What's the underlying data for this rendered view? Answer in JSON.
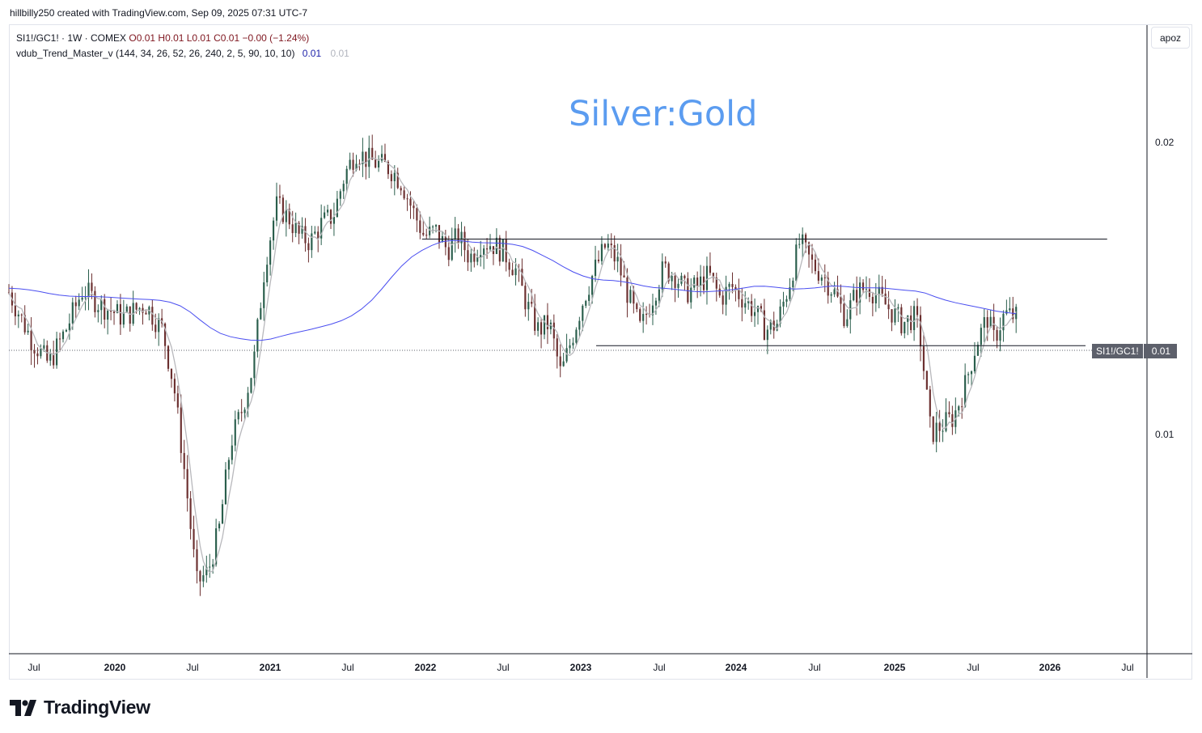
{
  "header": {
    "text": "hillbilly250 created with TradingView.com, Sep 09, 2025 07:31 UTC-7"
  },
  "legend": {
    "symbol": "SI1!/GC1! · 1W · COMEX",
    "ohlc": "O0.01  H0.01  L0.01  C0.01  −0.00 (−1.24%)",
    "indicator": "vdub_Trend_Master_v (144, 34, 26, 52, 26, 240, 2, 5, 90, 10, 10)",
    "indicator_value1": "0.01",
    "indicator_value2": "0.01"
  },
  "toolbar": {
    "apoz": "apoz"
  },
  "annotation": {
    "text": "Silver:Gold",
    "color": "#5b9cf0"
  },
  "price_label": {
    "symbol": "SI1!/GC1!",
    "value": "0.01"
  },
  "brand": {
    "name": "TradingView"
  },
  "colors": {
    "up": "#2a5e4c",
    "down": "#6b2f2f",
    "ma_long": "#4a4ef0",
    "ma_short": "#b8b8bc",
    "line": "#131722"
  },
  "chart_data": {
    "type": "candlestick",
    "symbol": "SI1!/GC1!",
    "timeframe": "1W",
    "exchange": "COMEX",
    "y_ticks": [
      "0.02",
      "0.01"
    ],
    "x_ticks": [
      "Jul",
      "2020",
      "Jul",
      "2021",
      "Jul",
      "2022",
      "Jul",
      "2023",
      "Jul",
      "2024",
      "Jul",
      "2025",
      "Jul",
      "2026",
      "Jul"
    ],
    "last_value": 0.01,
    "scale": "log",
    "close_path": [
      [
        0.0,
        0.014
      ],
      [
        0.02,
        0.0125
      ],
      [
        0.035,
        0.0118
      ],
      [
        0.05,
        0.0128
      ],
      [
        0.065,
        0.0141
      ],
      [
        0.08,
        0.0136
      ],
      [
        0.1,
        0.0132
      ],
      [
        0.12,
        0.0136
      ],
      [
        0.135,
        0.0128
      ],
      [
        0.145,
        0.0112
      ],
      [
        0.155,
        0.009
      ],
      [
        0.165,
        0.007
      ],
      [
        0.175,
        0.0072
      ],
      [
        0.185,
        0.008
      ],
      [
        0.195,
        0.0098
      ],
      [
        0.205,
        0.0106
      ],
      [
        0.215,
        0.0118
      ],
      [
        0.225,
        0.015
      ],
      [
        0.235,
        0.0172
      ],
      [
        0.245,
        0.0168
      ],
      [
        0.255,
        0.016
      ],
      [
        0.265,
        0.0158
      ],
      [
        0.275,
        0.0165
      ],
      [
        0.285,
        0.0168
      ],
      [
        0.295,
        0.0185
      ],
      [
        0.305,
        0.0196
      ],
      [
        0.315,
        0.0192
      ],
      [
        0.325,
        0.019
      ],
      [
        0.335,
        0.0188
      ],
      [
        0.345,
        0.0182
      ],
      [
        0.355,
        0.017
      ],
      [
        0.365,
        0.016
      ],
      [
        0.375,
        0.0162
      ],
      [
        0.385,
        0.0155
      ],
      [
        0.395,
        0.016
      ],
      [
        0.405,
        0.0152
      ],
      [
        0.415,
        0.0158
      ],
      [
        0.425,
        0.0157
      ],
      [
        0.435,
        0.0154
      ],
      [
        0.445,
        0.0148
      ],
      [
        0.455,
        0.0136
      ],
      [
        0.465,
        0.0128
      ],
      [
        0.475,
        0.013
      ],
      [
        0.485,
        0.0115
      ],
      [
        0.495,
        0.0126
      ],
      [
        0.505,
        0.0138
      ],
      [
        0.515,
        0.0148
      ],
      [
        0.525,
        0.0157
      ],
      [
        0.535,
        0.015
      ],
      [
        0.545,
        0.0138
      ],
      [
        0.555,
        0.0128
      ],
      [
        0.565,
        0.0138
      ],
      [
        0.575,
        0.0148
      ],
      [
        0.585,
        0.0146
      ],
      [
        0.595,
        0.014
      ],
      [
        0.605,
        0.0142
      ],
      [
        0.615,
        0.0146
      ],
      [
        0.625,
        0.0138
      ],
      [
        0.635,
        0.0142
      ],
      [
        0.645,
        0.0138
      ],
      [
        0.655,
        0.0134
      ],
      [
        0.665,
        0.0128
      ],
      [
        0.675,
        0.013
      ],
      [
        0.685,
        0.0142
      ],
      [
        0.695,
        0.0158
      ],
      [
        0.705,
        0.015
      ],
      [
        0.715,
        0.0146
      ],
      [
        0.725,
        0.014
      ],
      [
        0.735,
        0.0132
      ],
      [
        0.745,
        0.014
      ],
      [
        0.755,
        0.0142
      ],
      [
        0.765,
        0.0138
      ],
      [
        0.775,
        0.0134
      ],
      [
        0.785,
        0.013
      ],
      [
        0.795,
        0.0132
      ],
      [
        0.8,
        0.0128
      ],
      [
        0.81,
        0.01
      ],
      [
        0.82,
        0.0102
      ],
      [
        0.83,
        0.0104
      ],
      [
        0.84,
        0.0112
      ],
      [
        0.85,
        0.0124
      ],
      [
        0.86,
        0.0132
      ],
      [
        0.865,
        0.0125
      ],
      [
        0.875,
        0.0133
      ],
      [
        0.885,
        0.0132
      ]
    ],
    "horizontal_lines": [
      {
        "y": 0.01589,
        "x_from": 0.363,
        "x_to": 0.965
      },
      {
        "y": 0.01233,
        "x_from": 0.516,
        "x_to": 0.946
      }
    ]
  }
}
